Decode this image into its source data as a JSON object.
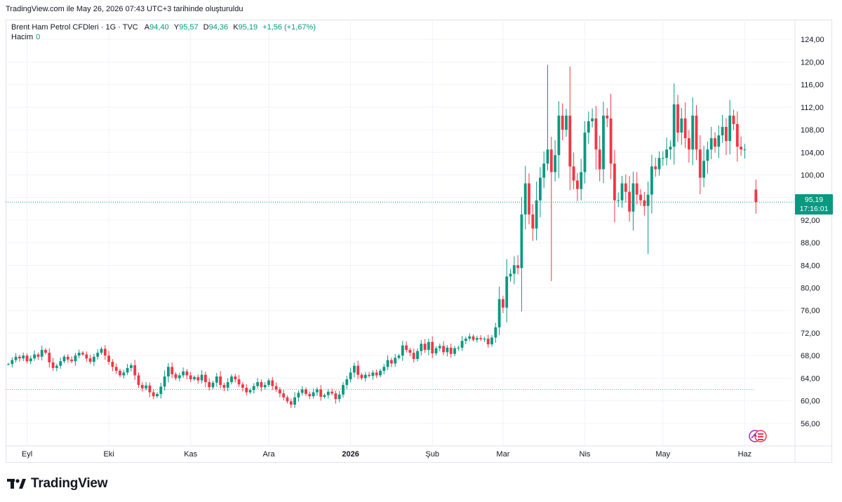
{
  "header": {
    "note": "TradingView.com ile May 26, 2026 07:43 UTC+3 tarihinde oluşturuldu"
  },
  "legend": {
    "symbol": "Brent Ham Petrol CFDleri · 1G · TVC",
    "open_label": "A",
    "open": "94,40",
    "high_label": "Y",
    "high": "95,57",
    "low_label": "D",
    "low": "94,36",
    "close_label": "K",
    "close": "95,19",
    "change": "+1,56 (+1,67%)",
    "volume_label": "Hacim",
    "volume": "0"
  },
  "price_badge": {
    "price": "95,19",
    "countdown": "17:16:01"
  },
  "brand": {
    "name": "TradingView"
  },
  "colors": {
    "up": "#089981",
    "down": "#f23645",
    "grid": "#f0f3fa",
    "axis_text": "#131722",
    "price_line": "#089981",
    "ref_line": "#f23645"
  },
  "icons": [
    "tradingview-logo-icon",
    "flag-icon"
  ],
  "chart_data": {
    "type": "candlestick",
    "y_ticks": [
      "124,00",
      "120,00",
      "116,00",
      "112,00",
      "108,00",
      "104,00",
      "100,00",
      "96,00",
      "92,00",
      "88,00",
      "84,00",
      "80,00",
      "76,00",
      "72,00",
      "68,00",
      "64,00",
      "60,00",
      "56,00"
    ],
    "y_tick_values": [
      124,
      120,
      116,
      112,
      108,
      104,
      100,
      96,
      92,
      88,
      84,
      80,
      76,
      72,
      68,
      64,
      60,
      56
    ],
    "ylim": [
      52.5,
      127.5
    ],
    "x_labels": [
      {
        "label": "Eyl",
        "index": 5
      },
      {
        "label": "Eki",
        "index": 27
      },
      {
        "label": "Kas",
        "index": 49
      },
      {
        "label": "Ara",
        "index": 70
      },
      {
        "label": "2026",
        "index": 92
      },
      {
        "label": "Şub",
        "index": 114
      },
      {
        "label": "Mar",
        "index": 133
      },
      {
        "label": "Nis",
        "index": 155
      },
      {
        "label": "May",
        "index": 176
      },
      {
        "label": "Haz",
        "index": 198
      }
    ],
    "last_price": 95.19,
    "reference_price": 62.0,
    "closes": [
      66.5,
      67.2,
      67.8,
      67.5,
      68.0,
      67.0,
      67.5,
      68.2,
      67.8,
      69.0,
      68.5,
      66.8,
      65.8,
      66.2,
      67.0,
      67.8,
      67.3,
      67.0,
      68.0,
      68.5,
      68.2,
      67.5,
      66.9,
      67.8,
      68.5,
      69.2,
      68.0,
      66.9,
      66.0,
      65.3,
      64.5,
      65.0,
      65.8,
      66.3,
      64.5,
      62.8,
      62.2,
      62.7,
      61.5,
      60.8,
      61.2,
      62.5,
      64.3,
      66.0,
      64.7,
      64.0,
      64.5,
      65.2,
      64.5,
      63.8,
      64.2,
      63.6,
      64.6,
      63.3,
      62.4,
      63.2,
      64.3,
      62.8,
      62.3,
      63.3,
      64.3,
      63.8,
      62.9,
      62.3,
      61.5,
      61.9,
      62.6,
      63.3,
      62.4,
      62.8,
      63.6,
      62.6,
      62.0,
      61.3,
      60.6,
      59.9,
      59.3,
      60.6,
      61.4,
      62.0,
      61.2,
      60.8,
      61.5,
      62.0,
      60.7,
      61.0,
      61.6,
      61.3,
      60.3,
      61.1,
      62.8,
      63.8,
      65.0,
      66.2,
      64.6,
      64.0,
      64.6,
      64.4,
      65.0,
      64.5,
      65.3,
      66.0,
      67.2,
      66.6,
      67.6,
      68.0,
      69.8,
      69.0,
      68.5,
      67.4,
      68.8,
      70.1,
      69.0,
      70.4,
      68.4,
      69.3,
      69.7,
      68.6,
      69.4,
      68.3,
      69.3,
      69.4,
      70.6,
      71.0,
      71.4,
      70.8,
      71.1,
      70.9,
      71.0,
      70.0,
      71.2,
      73.0,
      78.0,
      76.5,
      82.0,
      82.5,
      84.0,
      83.5,
      93.0,
      98.5,
      93.0,
      90.5,
      95.5,
      99.5,
      102.0,
      104.5,
      100.5,
      103.5,
      110.5,
      108.0,
      110.5,
      101.5,
      99.0,
      97.5,
      100.5,
      107.5,
      109.5,
      110.0,
      104.5,
      101.0,
      110.5,
      110.0,
      102.0,
      95.5,
      95.5,
      98.5,
      97.0,
      93.5,
      98.5,
      96.5,
      95.5,
      94.5,
      96.5,
      101.5,
      101.0,
      103.0,
      103.0,
      104.5,
      105.0,
      112.5,
      107.5,
      110.0,
      106.5,
      104.5,
      110.5,
      104.5,
      99.5,
      102.5,
      104.5,
      106.5,
      105.0,
      107.0,
      108.5,
      106.0,
      110.5,
      109.0,
      105.0,
      104.5,
      104.5,
      null,
      null,
      95.2
    ]
  }
}
